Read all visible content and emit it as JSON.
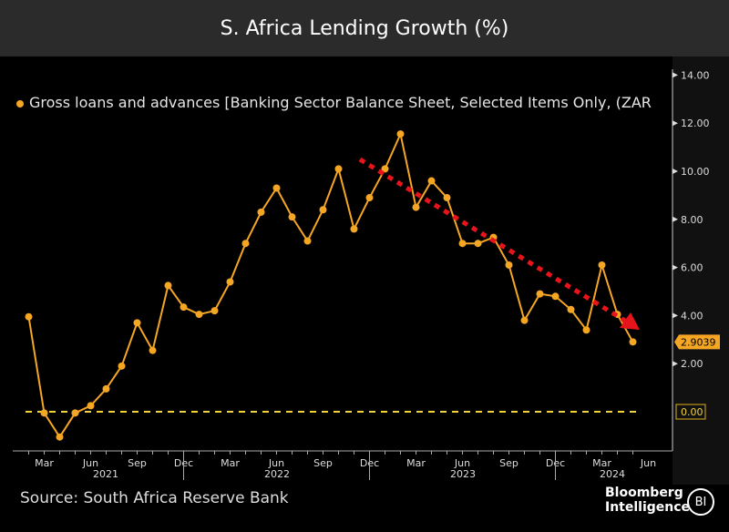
{
  "title": "S. Africa Lending Growth (%)",
  "source": "Source: South Africa Reserve Bank",
  "brand": {
    "line1": "Bloomberg",
    "line2": "Intelligence",
    "badge": "BI"
  },
  "chart_data": {
    "type": "line",
    "title": "S. Africa Lending Growth (%)",
    "legend_position": "top-left",
    "series": [
      {
        "name": "Gross loans and advances [Banking Sector Balance Sheet, Selected Items Only, (ZAR",
        "color": "#f5a623",
        "x": [
          "2021-02",
          "2021-03",
          "2021-04",
          "2021-05",
          "2021-06",
          "2021-07",
          "2021-08",
          "2021-09",
          "2021-10",
          "2021-11",
          "2021-12",
          "2022-01",
          "2022-02",
          "2022-03",
          "2022-04",
          "2022-05",
          "2022-06",
          "2022-07",
          "2022-08",
          "2022-09",
          "2022-10",
          "2022-11",
          "2022-12",
          "2023-01",
          "2023-02",
          "2023-03",
          "2023-04",
          "2023-05",
          "2023-06",
          "2023-07",
          "2023-08",
          "2023-09",
          "2023-10",
          "2023-11",
          "2023-12",
          "2024-01",
          "2024-02",
          "2024-03",
          "2024-04",
          "2024-05"
        ],
        "values": [
          3.95,
          -0.05,
          -1.05,
          -0.05,
          0.25,
          0.95,
          1.9,
          3.7,
          2.55,
          5.25,
          4.35,
          4.05,
          4.2,
          5.4,
          7.0,
          8.3,
          9.3,
          8.1,
          7.1,
          8.4,
          10.1,
          7.6,
          8.9,
          10.1,
          11.55,
          8.5,
          9.6,
          8.9,
          7.0,
          7.0,
          7.25,
          6.1,
          3.8,
          4.9,
          4.8,
          4.25,
          3.4,
          6.1,
          4.05,
          2.9039
        ]
      }
    ],
    "last_value_label": "2.9039",
    "zero_line_label": "0.00",
    "trend_arrow": {
      "from": "2022-11",
      "to": "2024-05",
      "color": "#e8141b"
    },
    "y_ticks": [
      "14.00",
      "12.00",
      "10.00",
      "8.00",
      "6.00",
      "4.00",
      "2.00"
    ],
    "ylim": [
      -1.6,
      14.2
    ],
    "x_ticks": [
      "Mar",
      "Jun",
      "Sep",
      "Dec",
      "Mar",
      "Jun",
      "Sep",
      "Dec",
      "Mar",
      "Jun",
      "Sep",
      "Dec",
      "Mar",
      "Jun"
    ],
    "x_years": [
      "2021",
      "2022",
      "2023",
      "2024"
    ],
    "grid": false
  }
}
